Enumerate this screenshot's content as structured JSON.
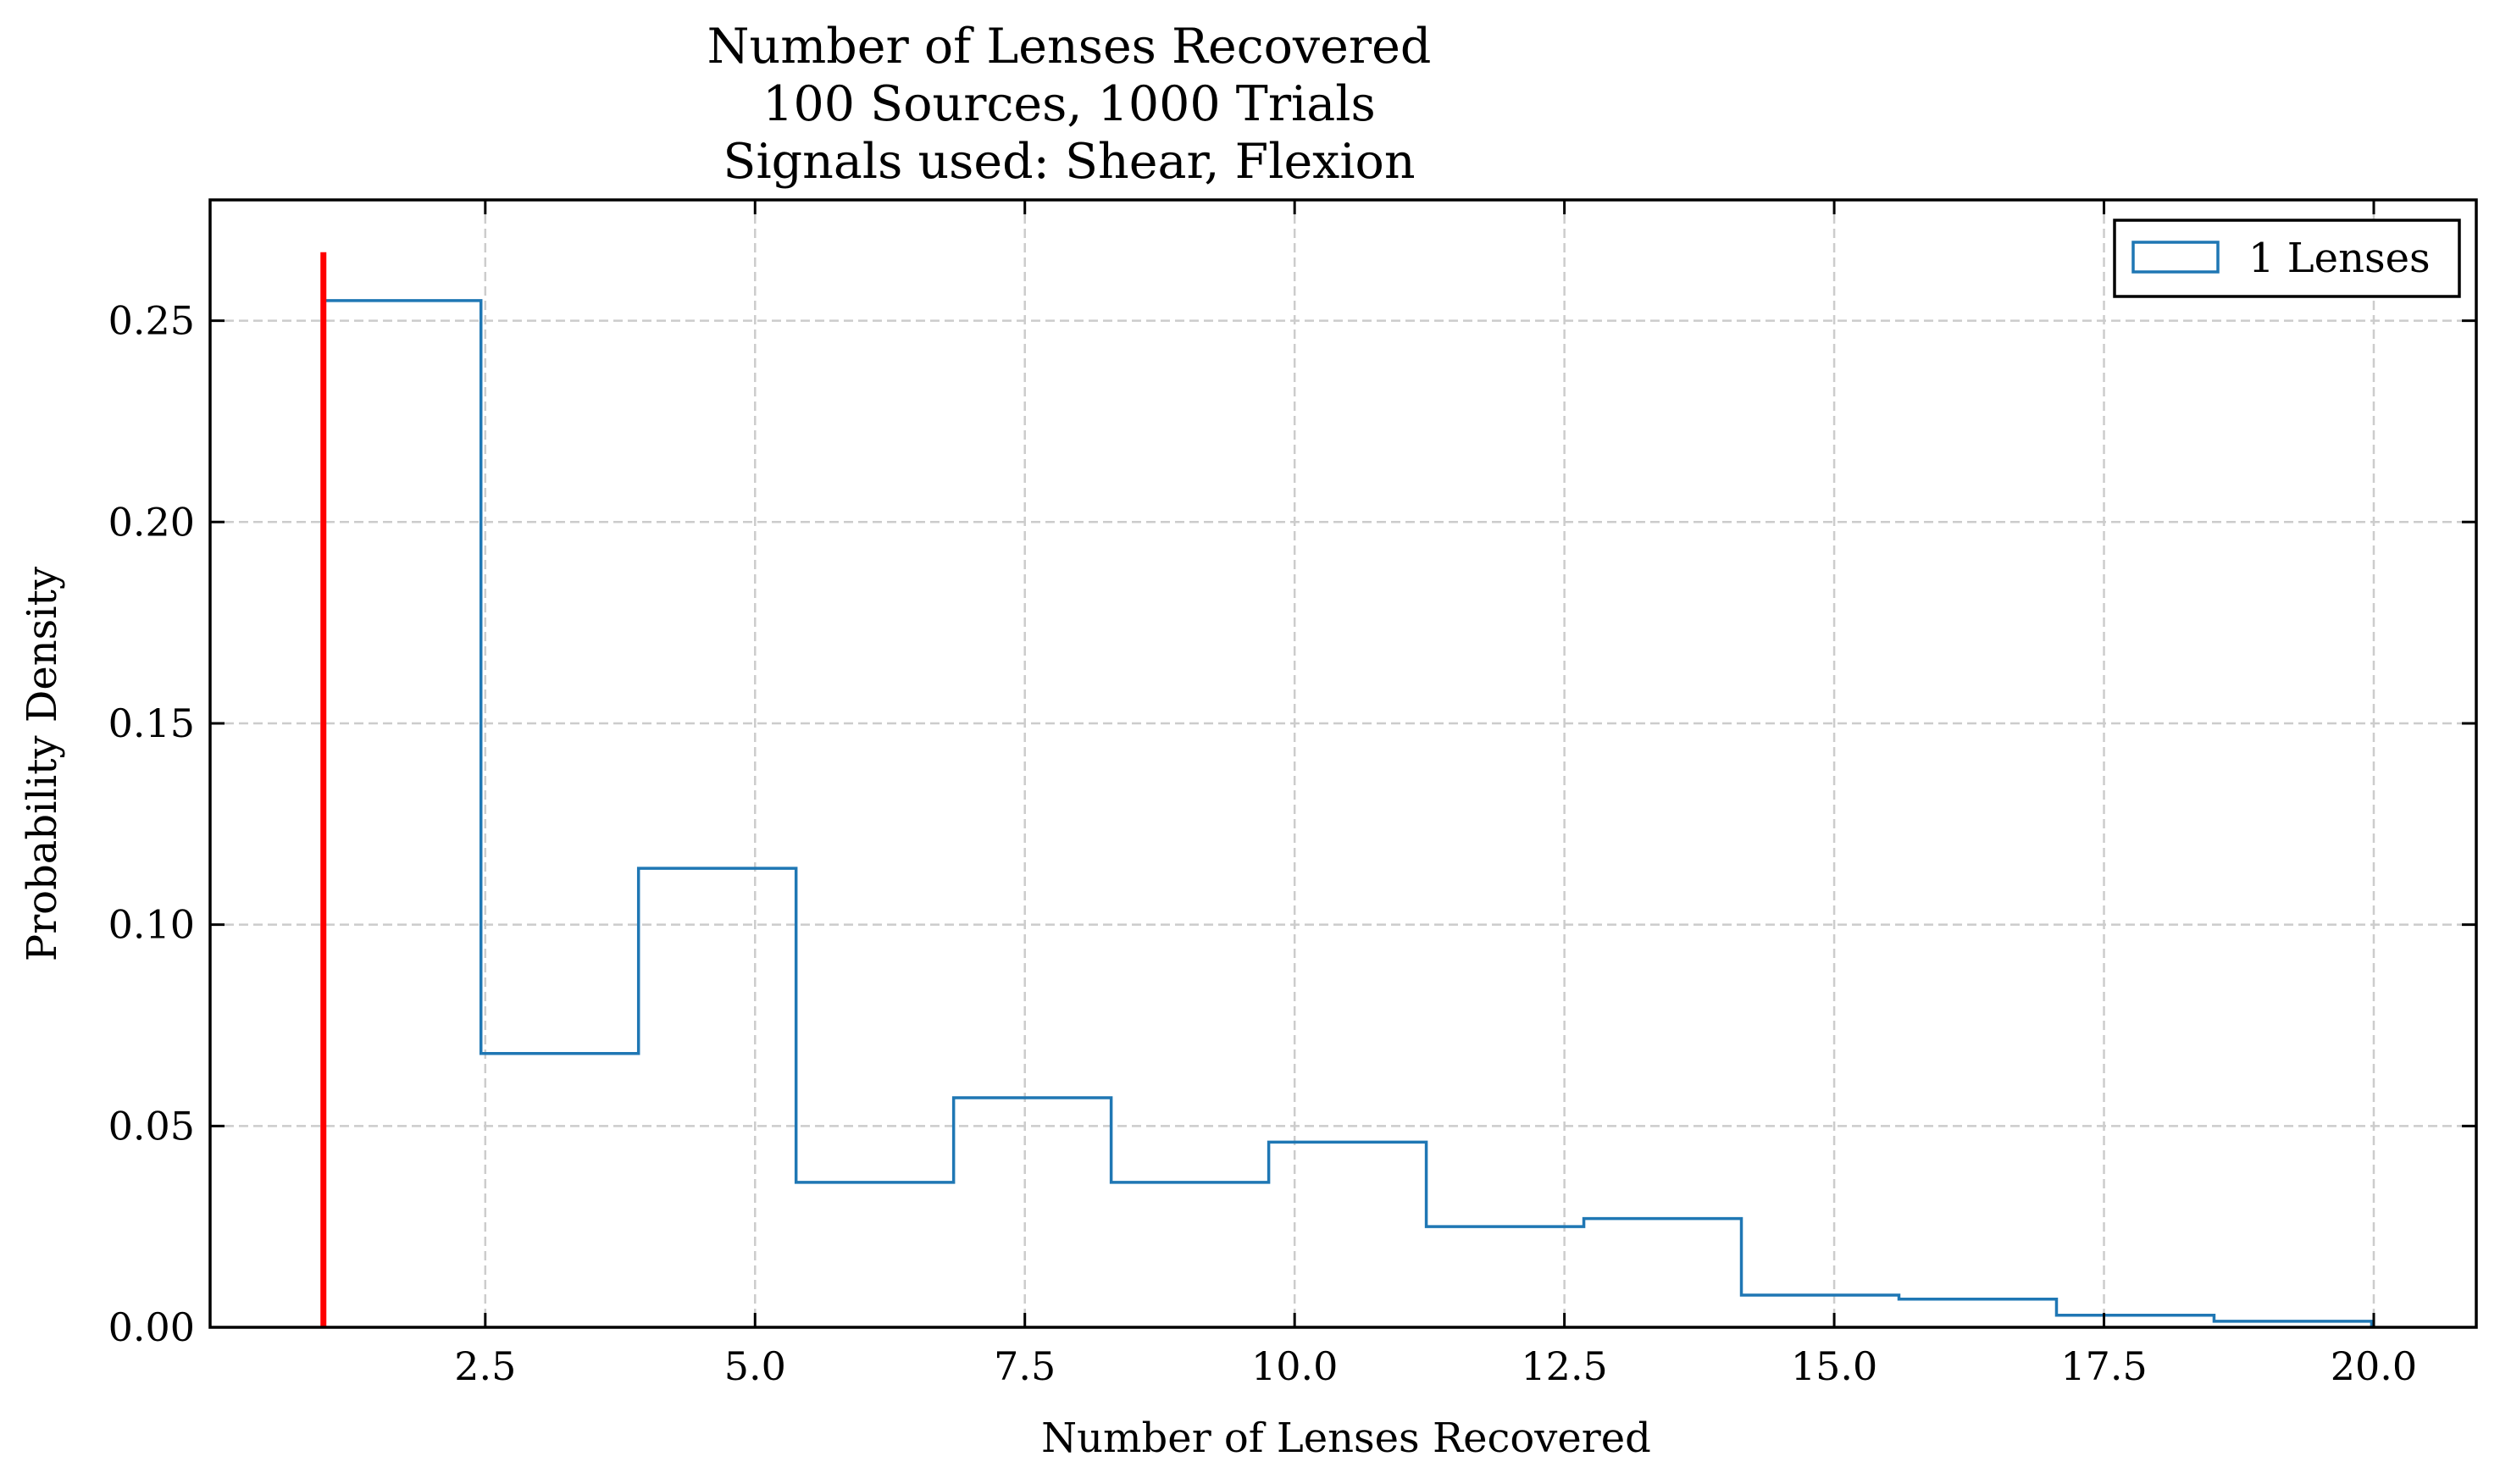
{
  "chart_data": {
    "type": "histogram",
    "title": [
      "Number of Lenses Recovered",
      "100 Sources, 1000 Trials",
      "Signals used: Shear, Flexion"
    ],
    "xlabel": "Number of Lenses Recovered",
    "ylabel": "Probability Density",
    "xlim": [
      -0.05,
      20.95
    ],
    "ylim": [
      0,
      0.28
    ],
    "x_ticks": [
      2.5,
      5.0,
      7.5,
      10.0,
      12.5,
      15.0,
      17.5,
      20.0
    ],
    "x_tick_labels": [
      "2.5",
      "5.0",
      "7.5",
      "10.0",
      "12.5",
      "15.0",
      "17.5",
      "20.0"
    ],
    "y_ticks": [
      0.0,
      0.05,
      0.1,
      0.15,
      0.2,
      0.25
    ],
    "y_tick_labels": [
      "0.00",
      "0.05",
      "0.10",
      "0.15",
      "0.20",
      "0.25"
    ],
    "grid": true,
    "legend_position": "top-right",
    "series": [
      {
        "name": "1 Lenses",
        "style": "step",
        "color": "#1f77b4",
        "bin_edges": [
          1.0,
          2.46,
          3.92,
          5.38,
          6.84,
          8.3,
          9.76,
          11.22,
          12.68,
          14.14,
          15.6,
          17.06,
          18.52,
          19.98
        ],
        "values": [
          0.255,
          0.068,
          0.114,
          0.036,
          0.057,
          0.036,
          0.046,
          0.025,
          0.027,
          0.008,
          0.007,
          0.003,
          0.0015
        ]
      }
    ],
    "annotations": [
      {
        "type": "vline",
        "x": 1,
        "y_max": 0.267,
        "color": "#ff0000"
      }
    ]
  }
}
